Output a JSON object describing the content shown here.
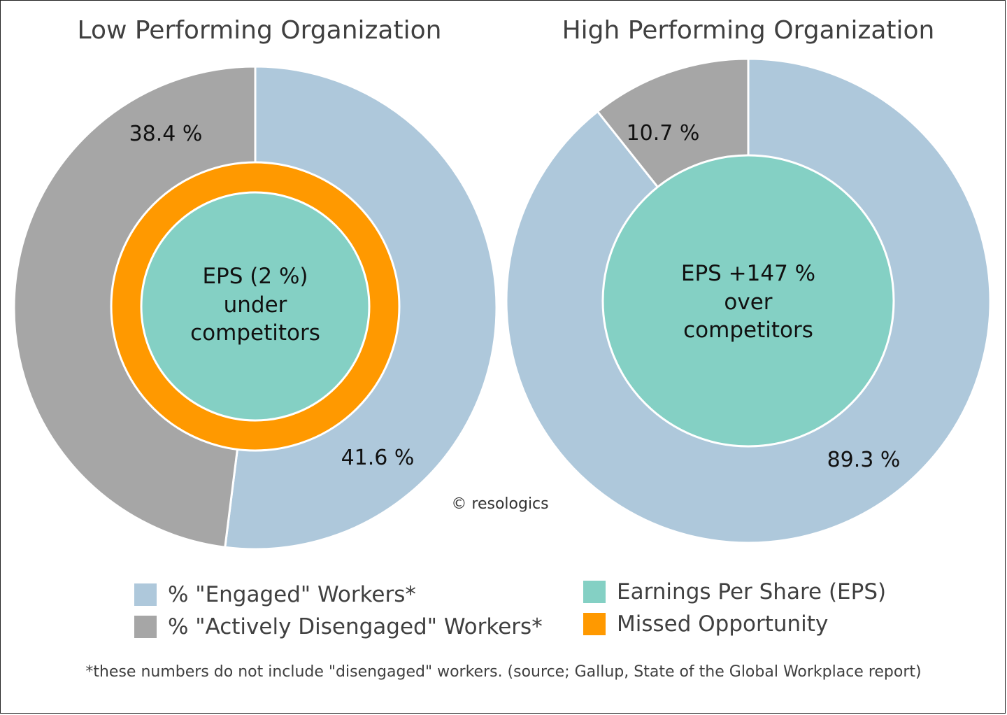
{
  "colors": {
    "engaged": "#AEC8DB",
    "disengaged": "#A6A6A6",
    "eps": "#84D0C4",
    "missed": "#FF9900"
  },
  "chart_data": [
    {
      "type": "pie",
      "title": "Low Performing Organization",
      "series": [
        {
          "name": "% \"Engaged\" Workers*",
          "value": 41.6,
          "label": "41.6 %",
          "color_key": "engaged"
        },
        {
          "name": "% \"Actively Disengaged\" Workers*",
          "value": 38.4,
          "label": "38.4 %",
          "color_key": "disengaged"
        }
      ],
      "center_lines": [
        "EPS (2 %)",
        "under",
        "competitors"
      ],
      "missed_opportunity_ring": true
    },
    {
      "type": "pie",
      "title": "High Performing Organization",
      "series": [
        {
          "name": "% \"Engaged\" Workers*",
          "value": 89.3,
          "label": "89.3 %",
          "color_key": "engaged"
        },
        {
          "name": "% \"Actively Disengaged\" Workers*",
          "value": 10.7,
          "label": "10.7 %",
          "color_key": "disengaged"
        }
      ],
      "center_lines": [
        "EPS +147 %",
        "over",
        "competitors"
      ],
      "missed_opportunity_ring": false
    }
  ],
  "copyright": "© resologics",
  "legend": [
    {
      "label": "% \"Engaged\" Workers*",
      "color_key": "engaged"
    },
    {
      "label": "% \"Actively Disengaged\" Workers*",
      "color_key": "disengaged"
    },
    {
      "label": "Earnings Per Share (EPS)",
      "color_key": "eps"
    },
    {
      "label": "Missed Opportunity",
      "color_key": "missed"
    }
  ],
  "footnote": "*these numbers do not include \"disengaged\" workers. (source; Gallup, State of the Global Workplace report)"
}
